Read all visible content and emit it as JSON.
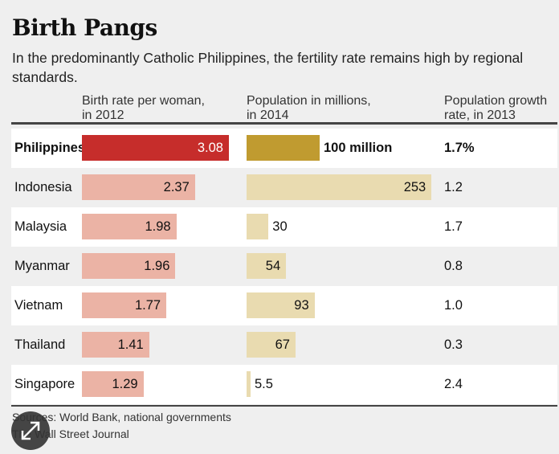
{
  "title": "Birth Pangs",
  "subtitle": "In the predominantly Catholic Philippines, the fertility rate remains high by regional standards.",
  "headers": {
    "birth": [
      "Birth rate per woman,",
      "in 2012"
    ],
    "population": [
      "Population in millions,",
      "in 2014"
    ],
    "growth": [
      "Population growth",
      "rate, in 2013"
    ]
  },
  "chart_data": {
    "type": "table",
    "columns": [
      "Birth rate per woman, in 2012",
      "Population in millions, in 2014",
      "Population growth rate, in 2013"
    ],
    "rows": [
      {
        "country": "Philippines",
        "birth_rate": 3.08,
        "birth_label": "3.08",
        "population": 100,
        "population_label": "100 million",
        "growth": "1.7%",
        "highlight": true
      },
      {
        "country": "Indonesia",
        "birth_rate": 2.37,
        "birth_label": "2.37",
        "population": 253,
        "population_label": "253",
        "growth": "1.2"
      },
      {
        "country": "Malaysia",
        "birth_rate": 1.98,
        "birth_label": "1.98",
        "population": 30,
        "population_label": "30",
        "growth": "1.7"
      },
      {
        "country": "Myanmar",
        "birth_rate": 1.96,
        "birth_label": "1.96",
        "population": 54,
        "population_label": "54",
        "growth": "0.8"
      },
      {
        "country": "Vietnam",
        "birth_rate": 1.77,
        "birth_label": "1.77",
        "population": 93,
        "population_label": "93",
        "growth": "1.0"
      },
      {
        "country": "Thailand",
        "birth_rate": 1.41,
        "birth_label": "1.41",
        "population": 67,
        "population_label": "67",
        "growth": "0.3"
      },
      {
        "country": "Singapore",
        "birth_rate": 1.29,
        "birth_label": "1.29",
        "population": 5.5,
        "population_label": "5.5",
        "growth": "2.4"
      }
    ],
    "colors": {
      "birth_highlight": "#c62d2b",
      "birth": "#ebb3a5",
      "population_highlight": "#c09b30",
      "population": "#e9dbb0"
    }
  },
  "sources": "Sources: World Bank, national governments",
  "credit": "The Wall Street Journal",
  "icons": {
    "expand": "expand-arrows-icon"
  }
}
